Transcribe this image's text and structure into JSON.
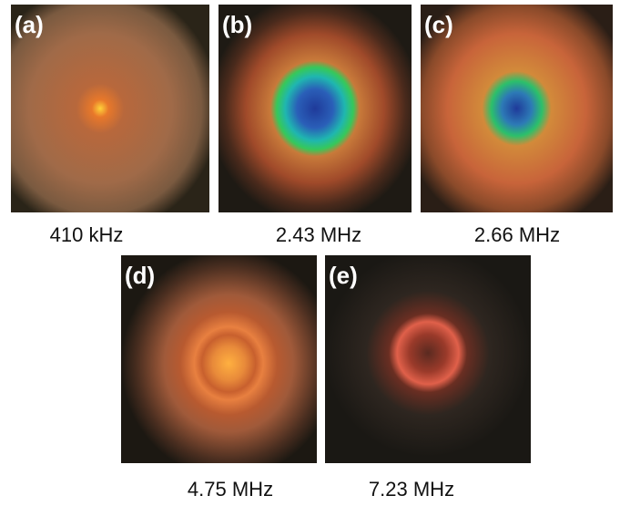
{
  "panels": [
    {
      "label": "(a)",
      "caption": "410 kHz"
    },
    {
      "label": "(b)",
      "caption": "2.43 MHz"
    },
    {
      "label": "(c)",
      "caption": "2.66 MHz"
    },
    {
      "label": "(d)",
      "caption": "4.75 MHz"
    },
    {
      "label": "(e)",
      "caption": "7.23 MHz"
    }
  ]
}
